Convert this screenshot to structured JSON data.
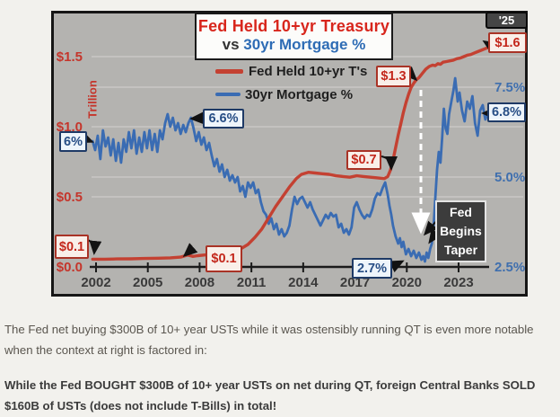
{
  "figure": {
    "title": {
      "line1": "Fed Held 10+yr Treasury",
      "vs": "vs",
      "line2": "30yr Mortgage %"
    },
    "legend": {
      "series1": "Fed Held 10+yr T's",
      "series2": "30yr Mortgage %"
    },
    "axis_unit_label": "Trillion",
    "year_end_badge": "'25",
    "taper_label": {
      "line1": "Fed",
      "line2": "Begins",
      "line3": "Taper"
    },
    "callouts": {
      "mortgage_start": "6%",
      "mortgage_2007_peak": "6.6%",
      "fed_start": "$0.1",
      "fed_2009": "$0.1",
      "mortgage_bottom": "2.7%",
      "fed_pre_covid": "$0.7",
      "fed_post_covid": "$1.3",
      "fed_end": "$1.6",
      "mortgage_end": "6.8%"
    },
    "colors": {
      "fed_line": "#c44132",
      "mortgage_line": "#3a6cb3",
      "red_labels": "#c5352b",
      "blue_labels": "#3f6fae",
      "plot_background": "#b4b3b0"
    }
  },
  "chart_data": {
    "type": "line",
    "title": "Fed Held 10+yr Treasury vs 30yr Mortgage %",
    "legend_position": "top-center",
    "grid": true,
    "x_axis": {
      "tick_labels": [
        "2002",
        "2005",
        "2008",
        "2011",
        "2014",
        "2017",
        "2020",
        "2023"
      ],
      "tick_values": [
        2002,
        2005,
        2008,
        2011,
        2014,
        2017,
        2020,
        2023
      ],
      "range": [
        2001.8,
        2025.2
      ],
      "end_label": "'25"
    },
    "y_left_axis": {
      "label": "Trillion",
      "tick_labels": [
        "$1.5",
        "$1.0",
        "$0.5",
        "$0.0"
      ],
      "tick_values": [
        1.5,
        1.0,
        0.5,
        0.0
      ],
      "range": [
        0,
        1.62
      ],
      "gridline_values": [
        1.5,
        1.0,
        0.5
      ],
      "series": "Fed Held 10+yr T's"
    },
    "y_right_axis": {
      "tick_labels": [
        "7.5%",
        "5.0%",
        "2.5%"
      ],
      "tick_values": [
        7.5,
        5.0,
        2.5
      ],
      "range": [
        2.5,
        7.6
      ],
      "gridline_values": [
        7.5,
        5.0
      ],
      "series": "30yr Mortgage %"
    },
    "annotations": [
      {
        "label": "6%",
        "series": "30yr Mortgage %",
        "year": 2002,
        "value": 6.0
      },
      {
        "label": "6.6%",
        "series": "30yr Mortgage %",
        "year": 2007.5,
        "value": 6.6
      },
      {
        "label": "$0.1",
        "series": "Fed Held 10+yr T's",
        "year": 2002,
        "value": 0.1
      },
      {
        "label": "$0.1",
        "series": "Fed Held 10+yr T's",
        "year": 2009,
        "value": 0.1
      },
      {
        "label": "$0.7",
        "series": "Fed Held 10+yr T's",
        "year": 2019.3,
        "value": 0.7
      },
      {
        "label": "$1.3",
        "series": "Fed Held 10+yr T's",
        "year": 2020.6,
        "value": 1.3
      },
      {
        "label": "$1.6",
        "series": "Fed Held 10+yr T's",
        "year": 2025,
        "value": 1.6
      },
      {
        "label": "2.7%",
        "series": "30yr Mortgage %",
        "year": 2020.9,
        "value": 2.7
      },
      {
        "label": "6.8%",
        "series": "30yr Mortgage %",
        "year": 2025,
        "value": 6.8
      },
      {
        "label": "Fed Begins Taper",
        "type": "event",
        "year": 2021
      }
    ],
    "series": [
      {
        "name": "Fed Held 10+yr T's",
        "axis": "left",
        "color": "#c44132",
        "width": 3.4,
        "points": [
          [
            2001.8,
            0.055
          ],
          [
            2002.5,
            0.055
          ],
          [
            2003.2,
            0.057
          ],
          [
            2004.0,
            0.058
          ],
          [
            2004.8,
            0.06
          ],
          [
            2005.6,
            0.062
          ],
          [
            2006.3,
            0.065
          ],
          [
            2006.9,
            0.07
          ],
          [
            2007.3,
            0.085
          ],
          [
            2007.6,
            0.075
          ],
          [
            2007.9,
            0.08
          ],
          [
            2008.3,
            0.085
          ],
          [
            2008.7,
            0.09
          ],
          [
            2009.1,
            0.1
          ],
          [
            2009.6,
            0.105
          ],
          [
            2010.0,
            0.115
          ],
          [
            2010.4,
            0.13
          ],
          [
            2010.8,
            0.16
          ],
          [
            2011.2,
            0.21
          ],
          [
            2011.6,
            0.27
          ],
          [
            2012.0,
            0.35
          ],
          [
            2012.4,
            0.43
          ],
          [
            2012.8,
            0.5
          ],
          [
            2013.2,
            0.57
          ],
          [
            2013.6,
            0.63
          ],
          [
            2013.9,
            0.66
          ],
          [
            2014.3,
            0.675
          ],
          [
            2014.7,
            0.67
          ],
          [
            2015.1,
            0.665
          ],
          [
            2015.5,
            0.66
          ],
          [
            2015.9,
            0.65
          ],
          [
            2016.3,
            0.645
          ],
          [
            2016.7,
            0.64
          ],
          [
            2017.1,
            0.65
          ],
          [
            2017.5,
            0.645
          ],
          [
            2017.9,
            0.64
          ],
          [
            2018.3,
            0.635
          ],
          [
            2018.7,
            0.63
          ],
          [
            2018.9,
            0.645
          ],
          [
            2019.05,
            0.69
          ],
          [
            2019.2,
            0.76
          ],
          [
            2019.35,
            0.85
          ],
          [
            2019.5,
            0.94
          ],
          [
            2019.65,
            1.02
          ],
          [
            2019.8,
            1.1
          ],
          [
            2019.95,
            1.17
          ],
          [
            2020.1,
            1.23
          ],
          [
            2020.25,
            1.28
          ],
          [
            2020.4,
            1.31
          ],
          [
            2020.55,
            1.335
          ],
          [
            2020.7,
            1.35
          ],
          [
            2020.9,
            1.38
          ],
          [
            2021.1,
            1.41
          ],
          [
            2021.3,
            1.43
          ],
          [
            2021.5,
            1.44
          ],
          [
            2021.65,
            1.435
          ],
          [
            2021.8,
            1.45
          ],
          [
            2021.95,
            1.445
          ],
          [
            2022.1,
            1.46
          ],
          [
            2022.3,
            1.465
          ],
          [
            2022.5,
            1.47
          ],
          [
            2022.7,
            1.475
          ],
          [
            2022.9,
            1.485
          ],
          [
            2023.1,
            1.49
          ],
          [
            2023.3,
            1.5
          ],
          [
            2023.5,
            1.51
          ],
          [
            2023.7,
            1.515
          ],
          [
            2023.9,
            1.525
          ],
          [
            2024.1,
            1.535
          ],
          [
            2024.3,
            1.545
          ],
          [
            2024.5,
            1.555
          ],
          [
            2024.7,
            1.565
          ],
          [
            2024.85,
            1.575
          ]
        ]
      },
      {
        "name": "30yr Mortgage %",
        "axis": "right",
        "color": "#3a6cb3",
        "width": 2.8,
        "points": [
          [
            2001.8,
            6.0
          ],
          [
            2001.95,
            5.75
          ],
          [
            2002.1,
            6.15
          ],
          [
            2002.25,
            5.5
          ],
          [
            2002.4,
            6.3
          ],
          [
            2002.55,
            5.85
          ],
          [
            2002.7,
            6.1
          ],
          [
            2002.85,
            5.6
          ],
          [
            2003.0,
            6.05
          ],
          [
            2003.15,
            5.45
          ],
          [
            2003.3,
            5.95
          ],
          [
            2003.45,
            5.4
          ],
          [
            2003.6,
            6.05
          ],
          [
            2003.75,
            5.7
          ],
          [
            2003.9,
            6.25
          ],
          [
            2004.05,
            5.8
          ],
          [
            2004.2,
            6.3
          ],
          [
            2004.35,
            5.65
          ],
          [
            2004.5,
            6.1
          ],
          [
            2004.65,
            5.7
          ],
          [
            2004.8,
            6.25
          ],
          [
            2004.95,
            5.8
          ],
          [
            2005.1,
            6.3
          ],
          [
            2005.25,
            5.75
          ],
          [
            2005.4,
            6.2
          ],
          [
            2005.55,
            5.7
          ],
          [
            2005.7,
            6.3
          ],
          [
            2005.85,
            6.05
          ],
          [
            2006.0,
            6.5
          ],
          [
            2006.15,
            6.75
          ],
          [
            2006.3,
            6.4
          ],
          [
            2006.45,
            6.65
          ],
          [
            2006.6,
            6.3
          ],
          [
            2006.75,
            6.5
          ],
          [
            2006.9,
            6.2
          ],
          [
            2007.05,
            6.45
          ],
          [
            2007.2,
            6.25
          ],
          [
            2007.35,
            6.5
          ],
          [
            2007.5,
            6.65
          ],
          [
            2007.65,
            6.35
          ],
          [
            2007.8,
            6.0
          ],
          [
            2007.95,
            6.25
          ],
          [
            2008.1,
            5.9
          ],
          [
            2008.25,
            6.1
          ],
          [
            2008.4,
            5.75
          ],
          [
            2008.55,
            5.95
          ],
          [
            2008.7,
            5.6
          ],
          [
            2008.85,
            5.3
          ],
          [
            2009.0,
            5.5
          ],
          [
            2009.15,
            5.15
          ],
          [
            2009.3,
            5.35
          ],
          [
            2009.45,
            5.0
          ],
          [
            2009.6,
            5.2
          ],
          [
            2009.75,
            4.9
          ],
          [
            2009.9,
            5.05
          ],
          [
            2010.05,
            4.85
          ],
          [
            2010.2,
            5.0
          ],
          [
            2010.35,
            4.6
          ],
          [
            2010.5,
            4.75
          ],
          [
            2010.65,
            4.45
          ],
          [
            2010.8,
            4.85
          ],
          [
            2010.95,
            4.7
          ],
          [
            2011.1,
            4.85
          ],
          [
            2011.25,
            4.55
          ],
          [
            2011.4,
            4.65
          ],
          [
            2011.55,
            4.3
          ],
          [
            2011.7,
            4.05
          ],
          [
            2011.85,
            3.95
          ],
          [
            2012.0,
            3.7
          ],
          [
            2012.15,
            3.85
          ],
          [
            2012.3,
            3.55
          ],
          [
            2012.45,
            3.7
          ],
          [
            2012.6,
            3.4
          ],
          [
            2012.75,
            3.55
          ],
          [
            2012.9,
            3.35
          ],
          [
            2013.05,
            3.45
          ],
          [
            2013.2,
            3.65
          ],
          [
            2013.35,
            4.1
          ],
          [
            2013.5,
            4.45
          ],
          [
            2013.65,
            4.25
          ],
          [
            2013.8,
            4.4
          ],
          [
            2013.95,
            4.45
          ],
          [
            2014.1,
            4.3
          ],
          [
            2014.25,
            4.15
          ],
          [
            2014.4,
            4.3
          ],
          [
            2014.55,
            4.1
          ],
          [
            2014.7,
            3.95
          ],
          [
            2014.85,
            3.8
          ],
          [
            2015.0,
            3.65
          ],
          [
            2015.15,
            3.8
          ],
          [
            2015.3,
            3.95
          ],
          [
            2015.45,
            3.85
          ],
          [
            2015.6,
            4.0
          ],
          [
            2015.75,
            3.9
          ],
          [
            2015.9,
            3.95
          ],
          [
            2016.05,
            3.6
          ],
          [
            2016.2,
            3.7
          ],
          [
            2016.35,
            3.45
          ],
          [
            2016.5,
            3.55
          ],
          [
            2016.65,
            3.4
          ],
          [
            2016.8,
            3.6
          ],
          [
            2016.95,
            4.15
          ],
          [
            2017.1,
            4.3
          ],
          [
            2017.25,
            4.1
          ],
          [
            2017.4,
            3.95
          ],
          [
            2017.55,
            3.85
          ],
          [
            2017.7,
            3.95
          ],
          [
            2017.85,
            3.9
          ],
          [
            2018.0,
            4.1
          ],
          [
            2018.15,
            4.4
          ],
          [
            2018.3,
            4.55
          ],
          [
            2018.45,
            4.5
          ],
          [
            2018.6,
            4.7
          ],
          [
            2018.75,
            4.85
          ],
          [
            2018.9,
            4.5
          ],
          [
            2019.0,
            4.2
          ],
          [
            2019.1,
            3.95
          ],
          [
            2019.2,
            3.65
          ],
          [
            2019.35,
            3.35
          ],
          [
            2019.5,
            3.15
          ],
          [
            2019.6,
            3.3
          ],
          [
            2019.7,
            3.05
          ],
          [
            2019.8,
            3.2
          ],
          [
            2019.95,
            2.85
          ],
          [
            2020.1,
            3.0
          ],
          [
            2020.25,
            2.8
          ],
          [
            2020.4,
            2.95
          ],
          [
            2020.55,
            2.75
          ],
          [
            2020.7,
            2.9
          ],
          [
            2020.85,
            2.7
          ],
          [
            2020.95,
            2.8
          ],
          [
            2021.05,
            2.65
          ],
          [
            2021.15,
            2.9
          ],
          [
            2021.25,
            2.75
          ],
          [
            2021.35,
            3.0
          ],
          [
            2021.45,
            3.15
          ],
          [
            2021.55,
            3.6
          ],
          [
            2021.65,
            4.4
          ],
          [
            2021.75,
            5.2
          ],
          [
            2021.85,
            5.7
          ],
          [
            2021.95,
            5.4
          ],
          [
            2022.05,
            6.1
          ],
          [
            2022.15,
            6.9
          ],
          [
            2022.25,
            6.35
          ],
          [
            2022.35,
            6.2
          ],
          [
            2022.45,
            6.75
          ],
          [
            2022.6,
            7.15
          ],
          [
            2022.7,
            7.4
          ],
          [
            2022.8,
            7.75
          ],
          [
            2022.95,
            7.1
          ],
          [
            2023.05,
            7.35
          ],
          [
            2023.2,
            6.85
          ],
          [
            2023.35,
            6.55
          ],
          [
            2023.5,
            7.1
          ],
          [
            2023.65,
            6.9
          ],
          [
            2023.8,
            7.25
          ],
          [
            2023.95,
            6.5
          ],
          [
            2024.1,
            6.15
          ],
          [
            2024.25,
            6.85
          ],
          [
            2024.4,
            7.0
          ],
          [
            2024.55,
            6.6
          ],
          [
            2024.7,
            6.8
          ]
        ]
      }
    ]
  },
  "caption": {
    "paragraph1": "The Fed net buying $300B of 10+ year USTs while it was ostensibly running QT is even more notable when the context at right is factored in:",
    "paragraph2": "While the Fed BOUGHT $300B of 10+ year USTs on net during QT, foreign Central Banks SOLD $160B of USTs (does not include T-Bills) in total!"
  }
}
